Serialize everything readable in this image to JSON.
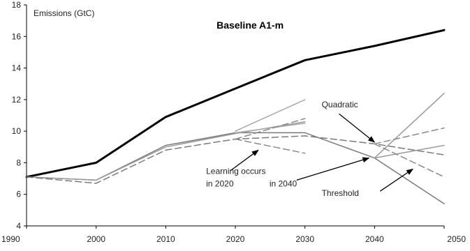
{
  "chart_data": {
    "type": "line",
    "ylabel": "Emissions (GtC)",
    "x": [
      1990,
      2000,
      2010,
      2020,
      2030,
      2040,
      2050
    ],
    "x_ticks": [
      "1990",
      "2000",
      "2010",
      "2020",
      "2030",
      "2040",
      "2050"
    ],
    "y_ticks": [
      "4",
      "6",
      "8",
      "10",
      "12",
      "14",
      "16",
      "18"
    ],
    "xlim": [
      1990,
      2050
    ],
    "ylim": [
      4,
      18
    ],
    "grid": false,
    "series": [
      {
        "name": "Baseline A1-m",
        "style": "solid",
        "color": "#000000",
        "width": 3,
        "points": [
          [
            1990,
            7.1
          ],
          [
            2000,
            8.0
          ],
          [
            2010,
            10.9
          ],
          [
            2020,
            12.7
          ],
          [
            2030,
            14.5
          ],
          [
            2040,
            15.4
          ],
          [
            2050,
            16.4
          ]
        ]
      },
      {
        "style": "solid",
        "color": "#7a7a7a",
        "width": 1.5,
        "points": [
          [
            1990,
            7.1
          ],
          [
            2000,
            6.9
          ],
          [
            2010,
            9.1
          ],
          [
            2020,
            9.9
          ],
          [
            2030,
            9.9
          ],
          [
            2040,
            8.3
          ],
          [
            2050,
            5.4
          ]
        ]
      },
      {
        "style": "solid",
        "color": "#9a9a9a",
        "width": 1.5,
        "points": [
          [
            1990,
            7.1
          ],
          [
            2000,
            6.9
          ],
          [
            2010,
            9.0
          ],
          [
            2020,
            9.85
          ],
          [
            2030,
            10.6
          ]
        ]
      },
      {
        "style": "solid",
        "color": "#a8a8a8",
        "width": 1.5,
        "points": [
          [
            2020,
            10.0
          ],
          [
            2030,
            12.0
          ]
        ]
      },
      {
        "style": "solid",
        "color": "#a8a8a8",
        "width": 1.5,
        "points": [
          [
            2020,
            9.9
          ],
          [
            2030,
            10.5
          ]
        ]
      },
      {
        "style": "dashed",
        "color": "#7a7a7a",
        "width": 1.5,
        "points": [
          [
            1990,
            7.1
          ],
          [
            2000,
            6.7
          ],
          [
            2010,
            8.8
          ],
          [
            2020,
            9.5
          ],
          [
            2030,
            9.7
          ],
          [
            2040,
            9.2
          ],
          [
            2050,
            8.5
          ]
        ]
      },
      {
        "style": "dashed",
        "color": "#8a8a8a",
        "width": 1.5,
        "points": [
          [
            2020,
            9.5
          ],
          [
            2030,
            10.8
          ]
        ]
      },
      {
        "style": "dashed",
        "color": "#8a8a8a",
        "width": 1.5,
        "points": [
          [
            2020,
            9.5
          ],
          [
            2030,
            8.6
          ]
        ]
      },
      {
        "style": "solid",
        "color": "#9a9a9a",
        "width": 1.5,
        "points": [
          [
            2040,
            8.3
          ],
          [
            2050,
            12.4
          ]
        ]
      },
      {
        "style": "solid",
        "color": "#9a9a9a",
        "width": 1.5,
        "points": [
          [
            2040,
            8.3
          ],
          [
            2050,
            9.1
          ]
        ]
      },
      {
        "style": "dashed",
        "color": "#8a8a8a",
        "width": 1.5,
        "points": [
          [
            2040,
            9.2
          ],
          [
            2050,
            10.2
          ]
        ]
      },
      {
        "style": "dashed",
        "color": "#8a8a8a",
        "width": 1.5,
        "points": [
          [
            2040,
            9.2
          ],
          [
            2050,
            7.1
          ]
        ]
      }
    ],
    "annotations": [
      {
        "id": "baseline",
        "text": "Baseline A1-m",
        "bold": true,
        "x": 2017.3,
        "y": 16.5
      },
      {
        "id": "quadratic",
        "text": "Quadratic",
        "x": 2032.4,
        "y": 11.5
      },
      {
        "id": "learning1",
        "text": "Learning occurs",
        "x": 2015.8,
        "y": 7.3
      },
      {
        "id": "learning2",
        "text": "in 2020",
        "x": 2015.8,
        "y": 6.5
      },
      {
        "id": "in2040",
        "text": "in 2040",
        "x": 2024.9,
        "y": 6.5
      },
      {
        "id": "threshold",
        "text": "Threshold",
        "x": 2032.4,
        "y": 5.9
      }
    ],
    "arrows": [
      {
        "id": "arrow-2020",
        "from": [
          2019.3,
          7.5
        ],
        "to": [
          2023.3,
          8.8
        ]
      },
      {
        "id": "arrow-2040",
        "from": [
          2028.8,
          6.9
        ],
        "to": [
          2039.2,
          8.3
        ]
      },
      {
        "id": "arrow-quadratic",
        "from": [
          2034.9,
          11.1
        ],
        "to": [
          2040.0,
          9.3
        ]
      },
      {
        "id": "arrow-threshold",
        "from": [
          2040.8,
          6.2
        ],
        "to": [
          2045.5,
          7.6
        ]
      }
    ]
  }
}
